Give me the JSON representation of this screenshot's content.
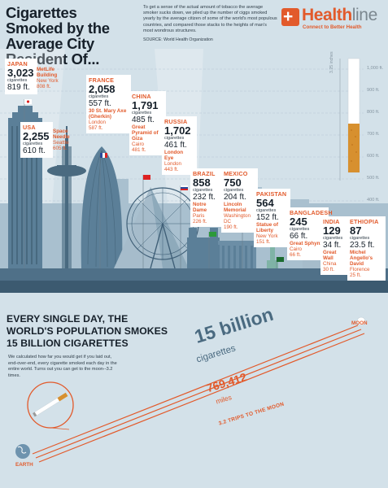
{
  "header": {
    "title": "Cigarettes Smoked by the Average City Resident Of...",
    "intro": "To get a sense of the actual amount of tobacco the average smoker sucks down, we piled up the number of ciggs smoked yearly by the average citizen of some of the world's most populous countries, and compared those stacks to the heights of man's most wondrous structures.",
    "source": "SOURCE: World Health Organization",
    "logo_name_a": "Health",
    "logo_name_b": "line",
    "logo_tagline": "Connect to Better Health",
    "logo_mark": "+"
  },
  "scale": {
    "ticks": [
      "1,000 ft.",
      "900 ft.",
      "800 ft.",
      "700 ft.",
      "600 ft.",
      "500 ft.",
      "400 ft."
    ],
    "cig_label": "3.25 inches"
  },
  "unit_label": "cigarettes",
  "countries": [
    {
      "country": "JAPAN",
      "count": "3,023",
      "feet": "819 ft.",
      "landmark": "MetLife Building",
      "city": "New York",
      "height": "808 ft."
    },
    {
      "country": "USA",
      "count": "2,255",
      "feet": "610 ft.",
      "landmark": "Space Needle",
      "city": "Seattle",
      "height": "605 ft."
    },
    {
      "country": "FRANCE",
      "count": "2,058",
      "feet": "557 ft.",
      "landmark": "30 St. Mary Axe (Gherkin)",
      "city": "London",
      "height": "587 ft."
    },
    {
      "country": "CHINA",
      "count": "1,791",
      "feet": "485 ft.",
      "landmark": "Great Pyramid of Giza",
      "city": "Cairo",
      "height": "481 ft."
    },
    {
      "country": "RUSSIA",
      "count": "1,702",
      "feet": "461 ft.",
      "landmark": "London Eye",
      "city": "London",
      "height": "443 ft."
    },
    {
      "country": "BRAZIL",
      "count": "858",
      "feet": "232 ft.",
      "landmark": "Notre Dame",
      "city": "Paris",
      "height": "226 ft."
    },
    {
      "country": "MEXICO",
      "count": "750",
      "feet": "204 ft.",
      "landmark": "Lincoln Memorial",
      "city": "Washington DC",
      "height": "190 ft."
    },
    {
      "country": "PAKISTAN",
      "count": "564",
      "feet": "152 ft.",
      "landmark": "Statue of Liberty",
      "city": "New York",
      "height": "151 ft."
    },
    {
      "country": "BANGLADESH",
      "count": "245",
      "feet": "66 ft.",
      "landmark": "Great Sphynx",
      "city": "Cairo",
      "height": "66 ft."
    },
    {
      "country": "INDIA",
      "count": "129",
      "feet": "34 ft.",
      "landmark": "Great Wall",
      "city": "China",
      "height": "30 ft."
    },
    {
      "country": "ETHIOPIA",
      "count": "87",
      "feet": "23.5 ft.",
      "landmark": "Michel Angello's David",
      "city": "Florence",
      "height": "25 ft."
    }
  ],
  "bottom": {
    "headline_1": "EVERY SINGLE DAY, THE",
    "headline_2": "WORLD'S  POPULATION SMOKES",
    "headline_3": "15 BILLION CIGARETTES",
    "text": "We calculated how far you would get if you laid out, end-over-end, every cigarette smoked each day in the entire world. Turns out you can get to the moon--3.2 times.",
    "big_number": "15 billion",
    "big_unit": "cigarettes",
    "miles_number": "769,412",
    "miles_unit": "miles",
    "trips": "3.2 TRIPS TO THE MOON",
    "moon": "MOON",
    "earth": "EARTH"
  },
  "colors": {
    "accent": "#e25a2b",
    "sky": "#d3e1e9",
    "building": "#5b7f98",
    "building_dark": "#3f5f77",
    "text": "#16202a"
  }
}
